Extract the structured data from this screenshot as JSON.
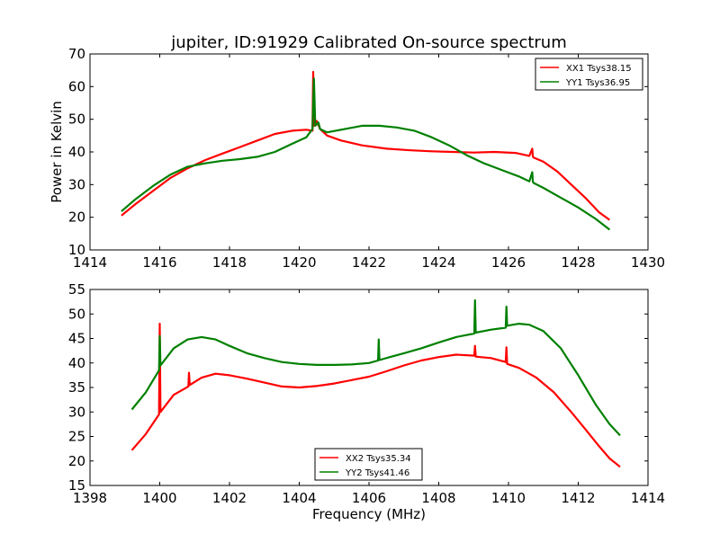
{
  "figure": {
    "title": "jupiter, ID:91929 Calibrated On-source spectrum",
    "xlabel": "Frequency (MHz)",
    "ylabel": "Power in Kelvin"
  },
  "chart_data": [
    {
      "type": "line",
      "xlim": [
        1414,
        1430
      ],
      "ylim": [
        10,
        70
      ],
      "xticks": [
        1414,
        1416,
        1418,
        1420,
        1422,
        1424,
        1426,
        1428,
        1430
      ],
      "yticks": [
        10,
        20,
        30,
        40,
        50,
        60,
        70
      ],
      "legend_position": "top-right",
      "series": [
        {
          "name": "XX1 Tsys38.15",
          "color": "#ff0000",
          "x": [
            1414.9,
            1415.3,
            1415.8,
            1416.3,
            1416.8,
            1417.3,
            1417.8,
            1418.3,
            1418.8,
            1419.3,
            1419.8,
            1420.2,
            1420.38,
            1420.4,
            1420.42,
            1420.5,
            1420.6,
            1420.8,
            1421.2,
            1421.8,
            1422.5,
            1423.2,
            1423.8,
            1424.4,
            1425.0,
            1425.6,
            1426.2,
            1426.6,
            1426.68,
            1426.7,
            1426.72,
            1427.0,
            1427.4,
            1427.8,
            1428.2,
            1428.6,
            1428.9
          ],
          "y": [
            20.5,
            24,
            28,
            32,
            35,
            37.5,
            39.5,
            41.5,
            43.5,
            45.5,
            46.5,
            46.8,
            46.5,
            64.5,
            48,
            49.5,
            47,
            45,
            43.5,
            42,
            41,
            40.5,
            40.2,
            40,
            39.8,
            40,
            39.7,
            38.8,
            41,
            38.5,
            38.3,
            37,
            34,
            30,
            26,
            21.5,
            19.2
          ]
        },
        {
          "name": "YY1 Tsys36.95",
          "color": "#008000",
          "x": [
            1414.9,
            1415.3,
            1415.8,
            1416.3,
            1416.8,
            1417.3,
            1417.8,
            1418.3,
            1418.8,
            1419.3,
            1419.8,
            1420.2,
            1420.38,
            1420.42,
            1420.46,
            1420.55,
            1420.6,
            1420.8,
            1421.3,
            1421.8,
            1422.3,
            1422.8,
            1423.3,
            1423.8,
            1424.3,
            1424.8,
            1425.3,
            1425.8,
            1426.3,
            1426.6,
            1426.68,
            1426.7,
            1426.72,
            1427.0,
            1427.5,
            1428.0,
            1428.5,
            1428.9
          ],
          "y": [
            21.8,
            25.5,
            29.5,
            33,
            35.5,
            36.5,
            37.3,
            37.8,
            38.5,
            40,
            42.5,
            44.5,
            47,
            62.5,
            48,
            49,
            47,
            46,
            47,
            48,
            48,
            47.5,
            46.5,
            44.5,
            42,
            39,
            36.5,
            34.5,
            32.5,
            31,
            33.8,
            30.8,
            30.5,
            29,
            26,
            23,
            19.5,
            16.2
          ]
        }
      ]
    },
    {
      "type": "line",
      "xlim": [
        1398,
        1414
      ],
      "ylim": [
        15,
        55
      ],
      "xticks": [
        1398,
        1400,
        1402,
        1404,
        1406,
        1408,
        1410,
        1412,
        1414
      ],
      "yticks": [
        15,
        20,
        25,
        30,
        35,
        40,
        45,
        50,
        55
      ],
      "legend_position": "bottom-center",
      "series": [
        {
          "name": "XX2 Tsys35.34",
          "color": "#ff0000",
          "x": [
            1399.2,
            1399.6,
            1399.98,
            1400.0,
            1400.02,
            1400.4,
            1400.82,
            1400.84,
            1400.86,
            1401.2,
            1401.6,
            1402.0,
            1402.5,
            1403.0,
            1403.5,
            1404.0,
            1404.5,
            1405.0,
            1405.5,
            1406.0,
            1406.5,
            1407.0,
            1407.5,
            1408.0,
            1408.5,
            1409.02,
            1409.04,
            1409.06,
            1409.5,
            1409.92,
            1409.94,
            1409.96,
            1410.3,
            1410.8,
            1411.3,
            1411.8,
            1412.2,
            1412.6,
            1412.9,
            1413.2
          ],
          "y": [
            22.2,
            25.5,
            29.5,
            48,
            30,
            33.5,
            35.2,
            38,
            35.5,
            37,
            37.8,
            37.5,
            36.8,
            36,
            35.2,
            35,
            35.3,
            35.8,
            36.5,
            37.2,
            38.3,
            39.5,
            40.5,
            41.2,
            41.7,
            41.5,
            43.5,
            41.3,
            41,
            40.2,
            43.2,
            39.8,
            39,
            37,
            34,
            30,
            26.5,
            23,
            20.5,
            18.8
          ]
        },
        {
          "name": "YY2 Tsys41.46",
          "color": "#008000",
          "x": [
            1399.2,
            1399.6,
            1399.98,
            1400.0,
            1400.02,
            1400.4,
            1400.8,
            1401.2,
            1401.6,
            1402.0,
            1402.5,
            1403.0,
            1403.5,
            1404.0,
            1404.5,
            1405.0,
            1405.5,
            1406.0,
            1406.26,
            1406.28,
            1406.3,
            1406.6,
            1407.0,
            1407.5,
            1408.0,
            1408.5,
            1409.02,
            1409.04,
            1409.06,
            1409.5,
            1409.92,
            1409.94,
            1409.96,
            1410.3,
            1410.6,
            1411.0,
            1411.5,
            1412.0,
            1412.5,
            1412.9,
            1413.2
          ],
          "y": [
            30.5,
            34,
            38.5,
            45.5,
            39.5,
            43,
            44.8,
            45.3,
            44.8,
            43.5,
            42,
            41,
            40.2,
            39.8,
            39.6,
            39.6,
            39.7,
            40,
            40.5,
            44.8,
            40.6,
            41.2,
            42,
            43,
            44.2,
            45.3,
            46,
            52.8,
            46.2,
            46.8,
            47.2,
            51.5,
            47.6,
            48,
            47.8,
            46.5,
            43,
            37.5,
            31.5,
            27.5,
            25.2
          ]
        }
      ]
    }
  ]
}
